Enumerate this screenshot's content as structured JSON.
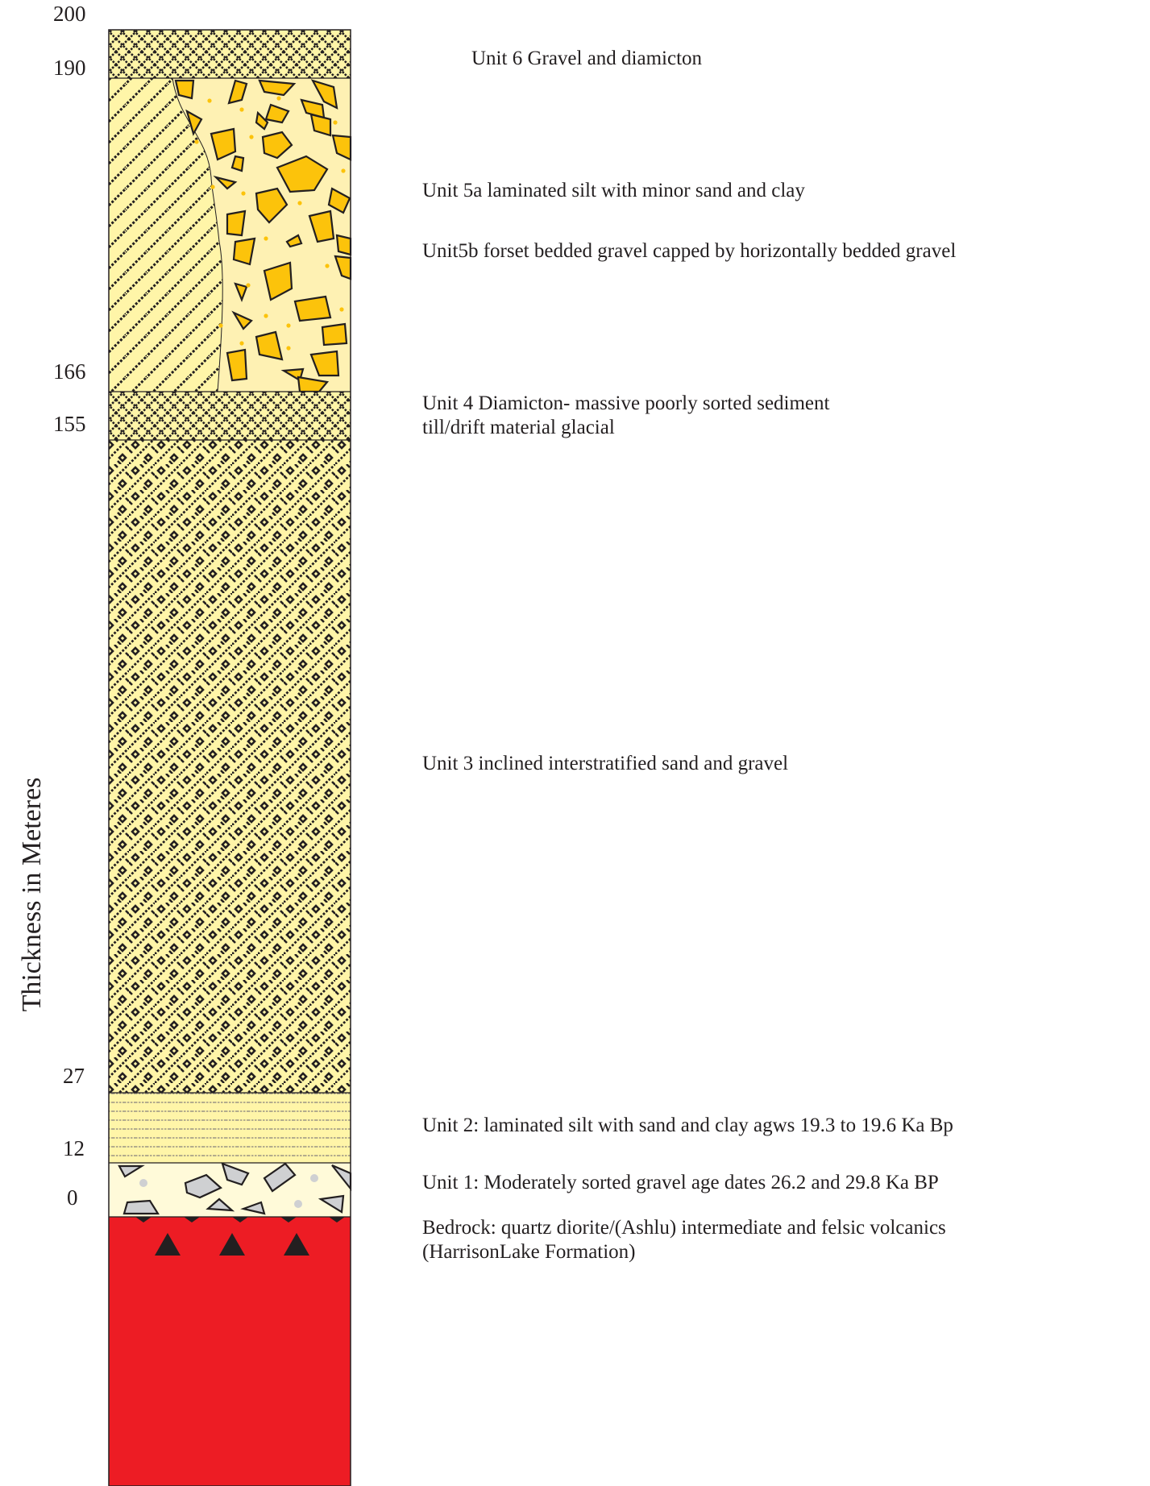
{
  "axis": {
    "title": "Thickness in Meteres",
    "ticks": [
      "200",
      "190",
      "166",
      "155",
      "27",
      "12",
      "0"
    ]
  },
  "units": [
    {
      "id": "unit6",
      "label": "Unit 6  Gravel and diamicton"
    },
    {
      "id": "unit5a",
      "label": "Unit 5a laminated silt with minor sand and clay"
    },
    {
      "id": "unit5b",
      "label": "Unit5b  forset bedded gravel capped by horizontally bedded gravel"
    },
    {
      "id": "unit4",
      "label": "Unit 4 Diamicton- massive poorly sorted sediment",
      "label2": "till/drift material glacial"
    },
    {
      "id": "unit3",
      "label": "Unit 3 inclined interstratified sand and gravel"
    },
    {
      "id": "unit2",
      "label": "Unit 2:  laminated silt with sand and clay agws 19.3 to 19.6 Ka Bp"
    },
    {
      "id": "unit1",
      "label": "Unit 1: Moderately sorted gravel age dates 26.2 and 29.8 Ka BP"
    },
    {
      "id": "bedrock",
      "label": "Bedrock: quartz diorite/(Ashlu) intermediate and felsic volcanics",
      "label2": "(HarrisonLake Formation)"
    }
  ],
  "colors": {
    "sand_yellow": "#fff5a8",
    "gravel_yellow": "#fef1b3",
    "clast_orange": "#fcc30b",
    "unit1_fill": "#fffad9",
    "clast_grey": "#cfd0d2",
    "bedrock_red": "#ed1c24",
    "ink": "#231f20"
  }
}
